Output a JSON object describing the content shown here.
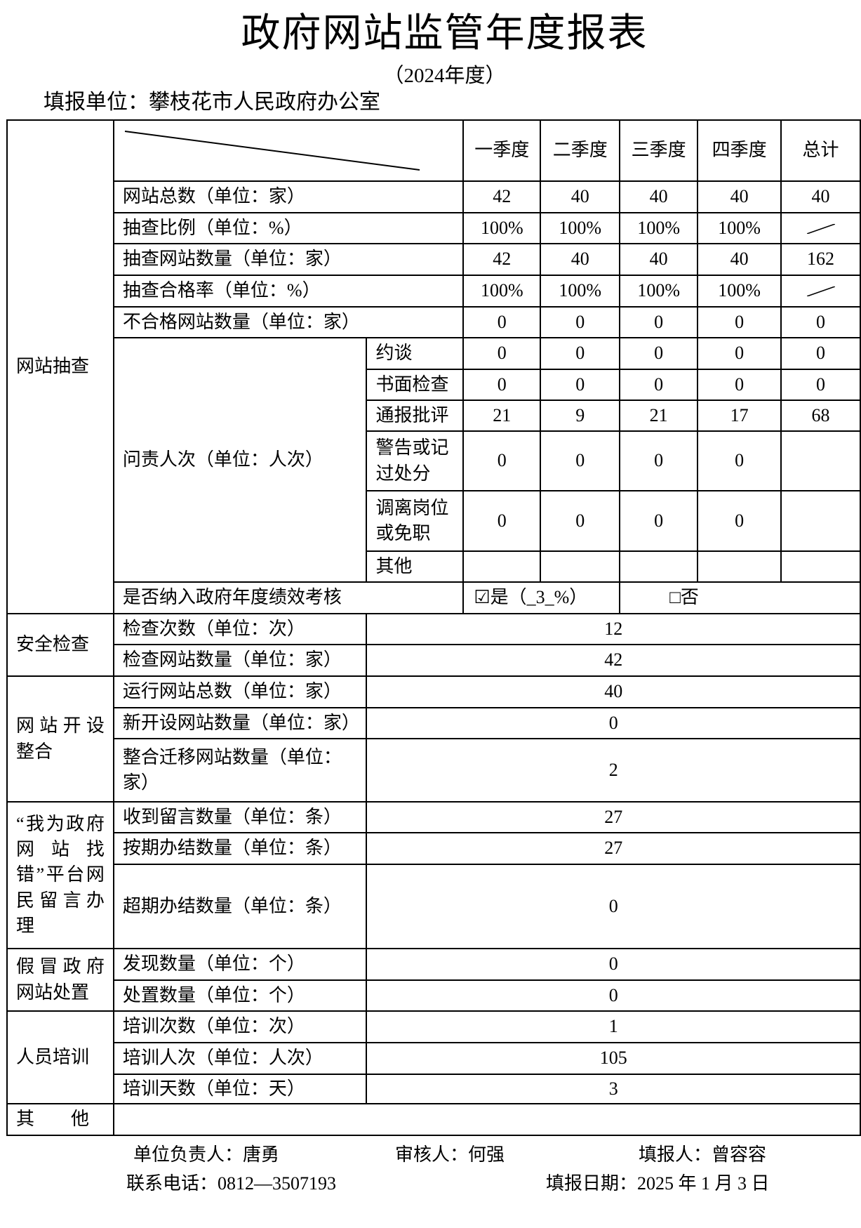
{
  "title": "政府网站监管年度报表",
  "year": "（2024年度）",
  "unit_label": "填报单位：攀枝花市人民政府办公室",
  "headers": [
    "一季度",
    "二季度",
    "三季度",
    "四季度",
    "总计"
  ],
  "sections": {
    "sampling": "网站抽查",
    "security": "安全检查",
    "opening": "网站开设整合",
    "message": "“我为政府网站找错”平台网民留言办理",
    "fake": "假冒政府网站处置",
    "training": "人员培训",
    "other": "其　　他"
  },
  "sampling_rows": [
    {
      "label": "网站总数（单位：家）",
      "values": [
        "42",
        "40",
        "40",
        "40",
        "40"
      ]
    },
    {
      "label": "抽查比例（单位：%）",
      "values": [
        "100%",
        "100%",
        "100%",
        "100%",
        ""
      ]
    },
    {
      "label": "抽查网站数量（单位：家）",
      "values": [
        "42",
        "40",
        "40",
        "40",
        "162"
      ]
    },
    {
      "label": "抽查合格率（单位：%）",
      "values": [
        "100%",
        "100%",
        "100%",
        "100%",
        ""
      ]
    },
    {
      "label": "不合格网站数量（单位：家）",
      "values": [
        "0",
        "0",
        "0",
        "0",
        "0"
      ]
    }
  ],
  "accountability": {
    "label": "问责人次（单位：人次）",
    "rows": [
      {
        "label": "约谈",
        "values": [
          "0",
          "0",
          "0",
          "0",
          "0"
        ]
      },
      {
        "label": "书面检查",
        "values": [
          "0",
          "0",
          "0",
          "0",
          "0"
        ]
      },
      {
        "label": "通报批评",
        "values": [
          "21",
          "9",
          "21",
          "17",
          "68"
        ]
      },
      {
        "label": "警告或记过处分",
        "values": [
          "0",
          "0",
          "0",
          "0",
          ""
        ]
      },
      {
        "label": "调离岗位或免职",
        "values": [
          "0",
          "0",
          "0",
          "0",
          ""
        ]
      },
      {
        "label": "其他",
        "values": [
          "",
          "",
          "",
          "",
          ""
        ]
      }
    ]
  },
  "assessment": {
    "label": "是否纳入政府年度绩效考核",
    "yes": "☑是（_3_%）",
    "no": "□否",
    "yes_checked": true
  },
  "security_rows": [
    {
      "label": "检查次数（单位：次）",
      "value": "12"
    },
    {
      "label": "检查网站数量（单位：家）",
      "value": "42"
    }
  ],
  "opening_rows": [
    {
      "label": "运行网站总数（单位：家）",
      "value": "40"
    },
    {
      "label": "新开设网站数量（单位：家）",
      "value": "0"
    },
    {
      "label": "整合迁移网站数量（单位：家）",
      "value": "2"
    }
  ],
  "message_rows": [
    {
      "label": "收到留言数量（单位：条）",
      "value": "27"
    },
    {
      "label": "按期办结数量（单位：条）",
      "value": "27"
    },
    {
      "label": "超期办结数量（单位：条）",
      "value": "0"
    }
  ],
  "fake_rows": [
    {
      "label": "发现数量（单位：个）",
      "value": "0"
    },
    {
      "label": "处置数量（单位：个）",
      "value": "0"
    }
  ],
  "training_rows": [
    {
      "label": "培训次数（单位：次）",
      "value": "1"
    },
    {
      "label": "培训人次（单位：人次）",
      "value": "105"
    },
    {
      "label": "培训天数（单位：天）",
      "value": "3"
    }
  ],
  "footer": {
    "leader": "单位负责人：唐勇",
    "reviewer": "审核人：何强",
    "filler": "填报人：曾容容",
    "phone": "联系电话：0812—3507193",
    "date": "填报日期：2025 年 1 月 3 日"
  }
}
